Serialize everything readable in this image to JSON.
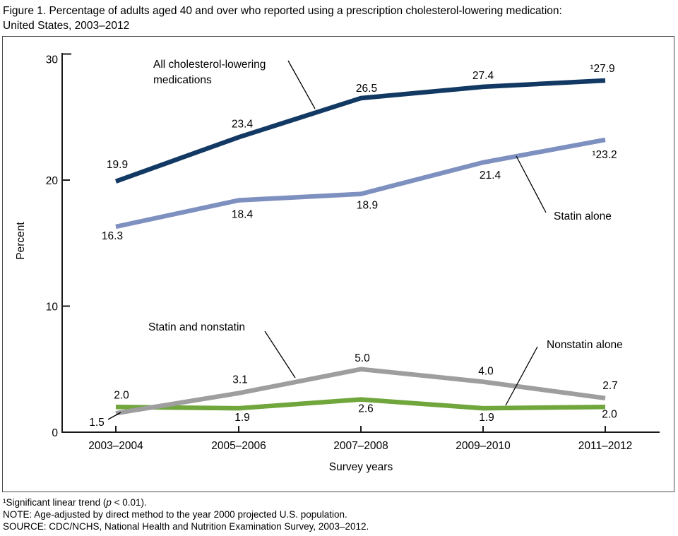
{
  "figure": {
    "title_line1": "Figure 1. Percentage of adults aged 40 and over who reported using a prescription cholesterol-lowering medication:",
    "title_line2": "United States, 2003–2012"
  },
  "chart_data": {
    "type": "line",
    "title": "Percentage of adults aged 40 and over who reported using a prescription cholesterol-lowering medication: United States, 2003–2012",
    "xlabel": "Survey years",
    "ylabel": "Percent",
    "ylim": [
      0,
      30
    ],
    "yticks": [
      0,
      10,
      20,
      30
    ],
    "grid": false,
    "legend_position": "inline-callouts",
    "categories": [
      "2003–2004",
      "2005–2006",
      "2007–2008",
      "2009–2010",
      "2011–2012"
    ],
    "series": [
      {
        "name": "All cholesterol-lowering medications",
        "color": "#123963",
        "values": [
          19.9,
          23.4,
          26.5,
          27.4,
          27.9
        ],
        "point_labels": [
          "19.9",
          "23.4",
          "26.5",
          "27.4",
          "¹27.9"
        ]
      },
      {
        "name": "Statin alone",
        "color": "#7d90bf",
        "values": [
          16.3,
          18.4,
          18.9,
          21.4,
          23.2
        ],
        "point_labels": [
          "16.3",
          "18.4",
          "18.9",
          "21.4",
          "¹23.2"
        ]
      },
      {
        "name": "Statin and nonstatin",
        "color": "#9e9e9e",
        "values": [
          1.5,
          3.1,
          5.0,
          4.0,
          2.7
        ],
        "point_labels": [
          "1.5",
          "3.1",
          "5.0",
          "4.0",
          "2.7"
        ]
      },
      {
        "name": "Nonstatin alone",
        "color": "#70a63c",
        "values": [
          2.0,
          1.9,
          2.6,
          1.9,
          2.0
        ],
        "point_labels": [
          "2.0",
          "1.9",
          "2.6",
          "1.9",
          "2.0"
        ]
      }
    ],
    "annotations": [
      {
        "series": "All cholesterol-lowering medications",
        "lines": [
          "All cholesterol-lowering",
          "medications"
        ]
      },
      {
        "series": "Statin alone",
        "lines": [
          "Statin alone"
        ]
      },
      {
        "series": "Statin and nonstatin",
        "lines": [
          "Statin and nonstatin"
        ]
      },
      {
        "series": "Nonstatin alone",
        "lines": [
          "Nonstatin alone"
        ]
      }
    ]
  },
  "footnotes": {
    "note1_pre": "¹Significant linear trend (",
    "note1_italic": "p",
    "note1_post": " < 0.01).",
    "note2": "NOTE: Age-adjusted by direct method to the year 2000 projected U.S. population.",
    "note3": "SOURCE: CDC/NCHS, National Health and Nutrition Examination Survey, 2003–2012."
  }
}
